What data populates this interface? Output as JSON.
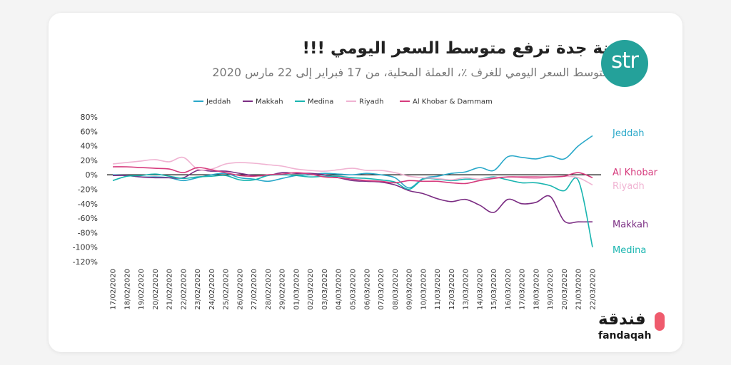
{
  "header": {
    "title": "مدينة جدة ترفع متوسط السعر اليومي !!!",
    "subtitle": "نسبة متوسط السعر اليومي للغرف ٪، العملة المحلية، من 17 فبراير إلى 22 مارس 2020",
    "str_logo_text": "str"
  },
  "brand": {
    "arabic": "فندقة",
    "latin": "fandaqah",
    "pin_color": "#ef5b6d"
  },
  "chart_data": {
    "type": "line",
    "title": "مدينة جدة ترفع متوسط السعر اليومي !!!",
    "subtitle": "نسبة متوسط السعر اليومي للغرف ٪، العملة المحلية، من 17 فبراير إلى 22 مارس 2020",
    "xlabel": "",
    "ylabel": "",
    "ylim": [
      -120,
      80
    ],
    "yticks": [
      "80%",
      "60%",
      "40%",
      "20%",
      "0%",
      "-20%",
      "-40%",
      "-60%",
      "-80%",
      "-100%",
      "-120%"
    ],
    "ytick_values": [
      80,
      60,
      40,
      20,
      0,
      -20,
      -40,
      -60,
      -80,
      -100,
      -120
    ],
    "grid": false,
    "legend_position": "top",
    "x": [
      "17/02/2020",
      "18/02/2020",
      "19/02/2020",
      "20/02/2020",
      "21/02/2020",
      "22/02/2020",
      "23/02/2020",
      "24/02/2020",
      "25/02/2020",
      "26/02/2020",
      "27/02/2020",
      "28/02/2020",
      "29/02/2020",
      "01/03/2020",
      "02/03/2020",
      "03/03/2020",
      "04/03/2020",
      "05/03/2020",
      "06/03/2020",
      "07/03/2020",
      "08/03/2020",
      "09/03/2020",
      "10/03/2020",
      "11/03/2020",
      "12/03/2020",
      "13/03/2020",
      "14/03/2020",
      "15/03/2020",
      "16/03/2020",
      "17/03/2020",
      "18/03/2020",
      "19/03/2020",
      "20/03/2020",
      "21/03/2020",
      "22/03/2020"
    ],
    "series": [
      {
        "name": "Jeddah",
        "label": "Jeddah",
        "color": "#29a8c9",
        "values": [
          0,
          -1,
          -3,
          -3,
          -4,
          -8,
          -4,
          0,
          2,
          -4,
          -6,
          -9,
          -5,
          -1,
          0,
          2,
          1,
          0,
          2,
          0,
          -4,
          -18,
          -5,
          -2,
          2,
          4,
          10,
          6,
          25,
          24,
          22,
          26,
          22,
          40,
          54
        ]
      },
      {
        "name": "Makkah",
        "label": "Makkah",
        "color": "#7b2d83",
        "values": [
          -1,
          -1,
          -3,
          -4,
          -4,
          -4,
          6,
          5,
          5,
          2,
          -1,
          -1,
          3,
          2,
          2,
          0,
          -4,
          -8,
          -9,
          -10,
          -14,
          -22,
          -26,
          -33,
          -37,
          -34,
          -42,
          -52,
          -34,
          -40,
          -38,
          -30,
          -64,
          -65,
          -65
        ]
      },
      {
        "name": "Medina",
        "label": "Medina",
        "color": "#19b5b0",
        "values": [
          -8,
          -2,
          -1,
          1,
          -2,
          -5,
          -3,
          -2,
          -1,
          -7,
          -7,
          -1,
          0,
          -1,
          -3,
          -2,
          -2,
          -4,
          -5,
          -7,
          -10,
          -20,
          -6,
          -6,
          -8,
          -6,
          -6,
          -3,
          -7,
          -11,
          -11,
          -15,
          -22,
          -8,
          -100
        ]
      },
      {
        "name": "Riyadh",
        "label": "Riyadh",
        "color": "#f0b3d2",
        "values": [
          15,
          17,
          19,
          21,
          18,
          24,
          8,
          8,
          15,
          17,
          16,
          14,
          12,
          8,
          6,
          5,
          7,
          9,
          6,
          6,
          3,
          -2,
          -4,
          -5,
          -7,
          -4,
          -6,
          -4,
          -3,
          -4,
          -5,
          -3,
          -2,
          -4,
          -14
        ]
      },
      {
        "name": "Al Khobar & Dammam",
        "label": "Al Khobar",
        "color": "#d63b7d",
        "values": [
          11,
          11,
          10,
          9,
          8,
          3,
          10,
          7,
          3,
          -1,
          -2,
          0,
          1,
          3,
          1,
          -3,
          -4,
          -6,
          -8,
          -9,
          -11,
          -8,
          -9,
          -9,
          -11,
          -12,
          -8,
          -5,
          -3,
          -3,
          -3,
          -3,
          -2,
          3,
          -4
        ]
      }
    ]
  }
}
